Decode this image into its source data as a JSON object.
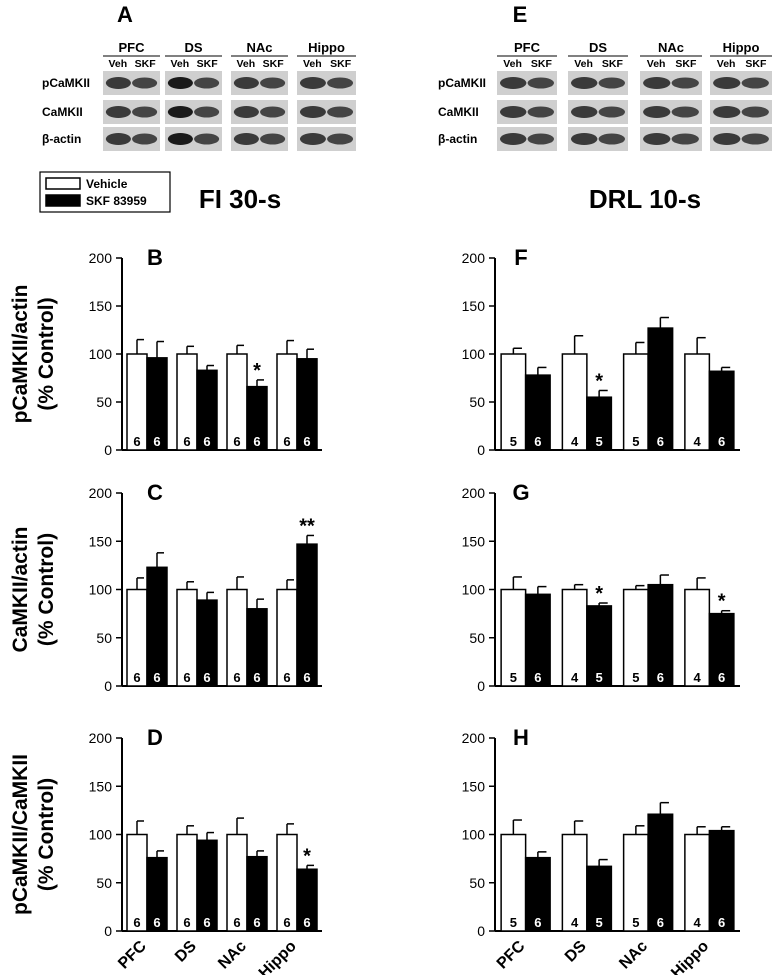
{
  "blots": [
    {
      "letter": "A",
      "regions": [
        "PFC",
        "DS",
        "NAc",
        "Hippo"
      ],
      "lanes": [
        "Veh",
        "SKF"
      ],
      "rows": [
        "pCaMKII",
        "CaMKII",
        "β-actin"
      ]
    },
    {
      "letter": "E",
      "regions": [
        "PFC",
        "DS",
        "NAc",
        "Hippo"
      ],
      "lanes": [
        "Veh",
        "SKF"
      ],
      "rows": [
        "pCaMKII",
        "CaMKII",
        "β-actin"
      ]
    }
  ],
  "legend": {
    "vehicle": "Vehicle",
    "skf": "SKF 83959",
    "placement": "top-left"
  },
  "column_titles": [
    "FI 30-s",
    "DRL 10-s"
  ],
  "colors": {
    "vehicle": "#ffffff",
    "skf": "#000000",
    "outline": "#000000"
  },
  "chart_data": [
    {
      "type": "bar",
      "letter": "B",
      "categories": [
        "PFC",
        "DS",
        "NAc",
        "Hippo"
      ],
      "ylabel": "pCaMKII/actin",
      "ylabel2": "(% Control)",
      "ylim": [
        0,
        200
      ],
      "yticks": [
        "0",
        "50",
        "100",
        "150",
        "200"
      ],
      "grid": false,
      "series": [
        {
          "name": "Vehicle",
          "values": [
            100,
            100,
            100,
            100
          ],
          "errors": [
            15,
            8,
            9,
            14
          ],
          "n": [
            "6",
            "6",
            "6",
            "6"
          ]
        },
        {
          "name": "SKF 83959",
          "values": [
            96,
            83,
            66,
            95
          ],
          "errors": [
            17,
            5,
            7,
            10
          ],
          "n": [
            "6",
            "6",
            "6",
            "6"
          ]
        }
      ],
      "annotations": [
        "",
        "",
        "*",
        ""
      ]
    },
    {
      "type": "bar",
      "letter": "C",
      "categories": [
        "PFC",
        "DS",
        "NAc",
        "Hippo"
      ],
      "ylabel": "CaMKII/actin",
      "ylabel2": "(% Control)",
      "ylim": [
        0,
        200
      ],
      "yticks": [
        "0",
        "50",
        "100",
        "150",
        "200"
      ],
      "grid": false,
      "series": [
        {
          "name": "Vehicle",
          "values": [
            100,
            100,
            100,
            100
          ],
          "errors": [
            12,
            8,
            13,
            10
          ],
          "n": [
            "6",
            "6",
            "6",
            "6"
          ]
        },
        {
          "name": "SKF 83959",
          "values": [
            123,
            89,
            80,
            147
          ],
          "errors": [
            15,
            8,
            10,
            9
          ],
          "n": [
            "6",
            "6",
            "6",
            "6"
          ]
        }
      ],
      "annotations": [
        "",
        "",
        "",
        "**"
      ]
    },
    {
      "type": "bar",
      "letter": "D",
      "categories": [
        "PFC",
        "DS",
        "NAc",
        "Hippo"
      ],
      "ylabel": "pCaMKII/CaMKII",
      "ylabel2": "(% Control)",
      "ylim": [
        0,
        200
      ],
      "yticks": [
        "0",
        "50",
        "100",
        "150",
        "200"
      ],
      "grid": false,
      "series": [
        {
          "name": "Vehicle",
          "values": [
            100,
            100,
            100,
            100
          ],
          "errors": [
            14,
            9,
            17,
            11
          ],
          "n": [
            "6",
            "6",
            "6",
            "6"
          ]
        },
        {
          "name": "SKF 83959",
          "values": [
            76,
            94,
            77,
            64
          ],
          "errors": [
            7,
            8,
            6,
            4
          ],
          "n": [
            "6",
            "6",
            "6",
            "6"
          ]
        }
      ],
      "annotations": [
        "",
        "",
        "",
        "*"
      ]
    },
    {
      "type": "bar",
      "letter": "F",
      "categories": [
        "PFC",
        "DS",
        "NAc",
        "Hippo"
      ],
      "ylabel": "",
      "ylabel2": "",
      "ylim": [
        0,
        200
      ],
      "yticks": [
        "0",
        "50",
        "100",
        "150",
        "200"
      ],
      "grid": false,
      "series": [
        {
          "name": "Vehicle",
          "values": [
            100,
            100,
            100,
            100
          ],
          "errors": [
            6,
            19,
            12,
            17
          ],
          "n": [
            "5",
            "4",
            "5",
            "4"
          ]
        },
        {
          "name": "SKF 83959",
          "values": [
            78,
            55,
            127,
            82
          ],
          "errors": [
            8,
            7,
            11,
            4
          ],
          "n": [
            "6",
            "5",
            "6",
            "6"
          ]
        }
      ],
      "annotations": [
        "",
        "*",
        "",
        ""
      ]
    },
    {
      "type": "bar",
      "letter": "G",
      "categories": [
        "PFC",
        "DS",
        "NAc",
        "Hippo"
      ],
      "ylabel": "",
      "ylabel2": "",
      "ylim": [
        0,
        200
      ],
      "yticks": [
        "0",
        "50",
        "100",
        "150",
        "200"
      ],
      "grid": false,
      "series": [
        {
          "name": "Vehicle",
          "values": [
            100,
            100,
            100,
            100
          ],
          "errors": [
            13,
            5,
            4,
            12
          ],
          "n": [
            "5",
            "4",
            "5",
            "4"
          ]
        },
        {
          "name": "SKF 83959",
          "values": [
            95,
            83,
            105,
            75
          ],
          "errors": [
            8,
            3,
            10,
            3
          ],
          "n": [
            "6",
            "5",
            "6",
            "6"
          ]
        }
      ],
      "annotations": [
        "",
        "*",
        "",
        "*"
      ]
    },
    {
      "type": "bar",
      "letter": "H",
      "categories": [
        "PFC",
        "DS",
        "NAc",
        "Hippo"
      ],
      "ylabel": "",
      "ylabel2": "",
      "ylim": [
        0,
        200
      ],
      "yticks": [
        "0",
        "50",
        "100",
        "150",
        "200"
      ],
      "grid": false,
      "series": [
        {
          "name": "Vehicle",
          "values": [
            100,
            100,
            100,
            100
          ],
          "errors": [
            15,
            14,
            9,
            8
          ],
          "n": [
            "5",
            "4",
            "5",
            "4"
          ]
        },
        {
          "name": "SKF 83959",
          "values": [
            76,
            67,
            121,
            104
          ],
          "errors": [
            6,
            7,
            12,
            4
          ],
          "n": [
            "6",
            "5",
            "6",
            "6"
          ]
        }
      ],
      "annotations": [
        "",
        "",
        "",
        ""
      ]
    }
  ]
}
